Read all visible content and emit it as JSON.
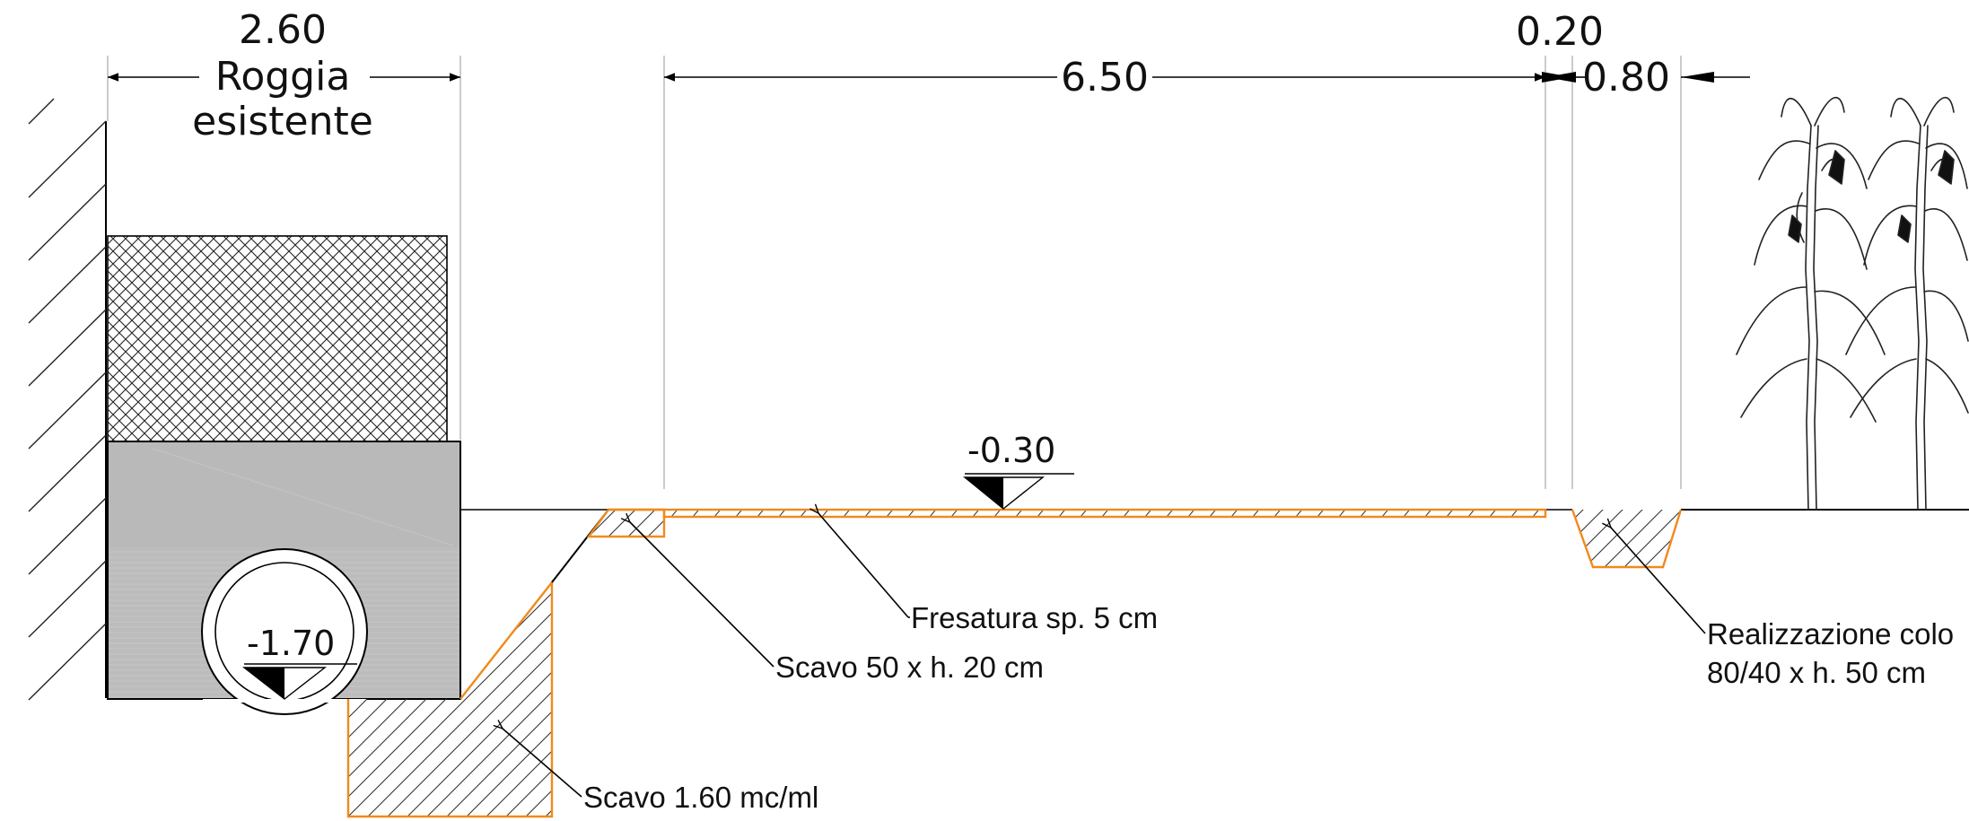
{
  "dimensions": {
    "roggia_width": "2.60",
    "roggia_label_1": "Roggia",
    "roggia_label_2": "esistente",
    "main_width": "6.50",
    "strip_width": "0.20",
    "ditch_width": "0.80"
  },
  "levels": {
    "ground": "-0.30",
    "pipe": "-1.70"
  },
  "notes": {
    "fresatura": "Fresatura sp. 5 cm",
    "scavo_small": "Scavo 50 x h. 20 cm",
    "scavo_large": "Scavo 1.60 mc/ml",
    "realizzazione_1": "Realizzazione colo",
    "realizzazione_2": "80/40 x h. 50 cm"
  },
  "colors": {
    "excavation": "#f08a1c",
    "concrete": "#bdbdbd",
    "line": "#000000"
  },
  "icons": [
    "existing-wall-hatch",
    "gravel-crosshatch",
    "concrete-block",
    "drain-pipe",
    "level-triangle",
    "corn-plant"
  ]
}
